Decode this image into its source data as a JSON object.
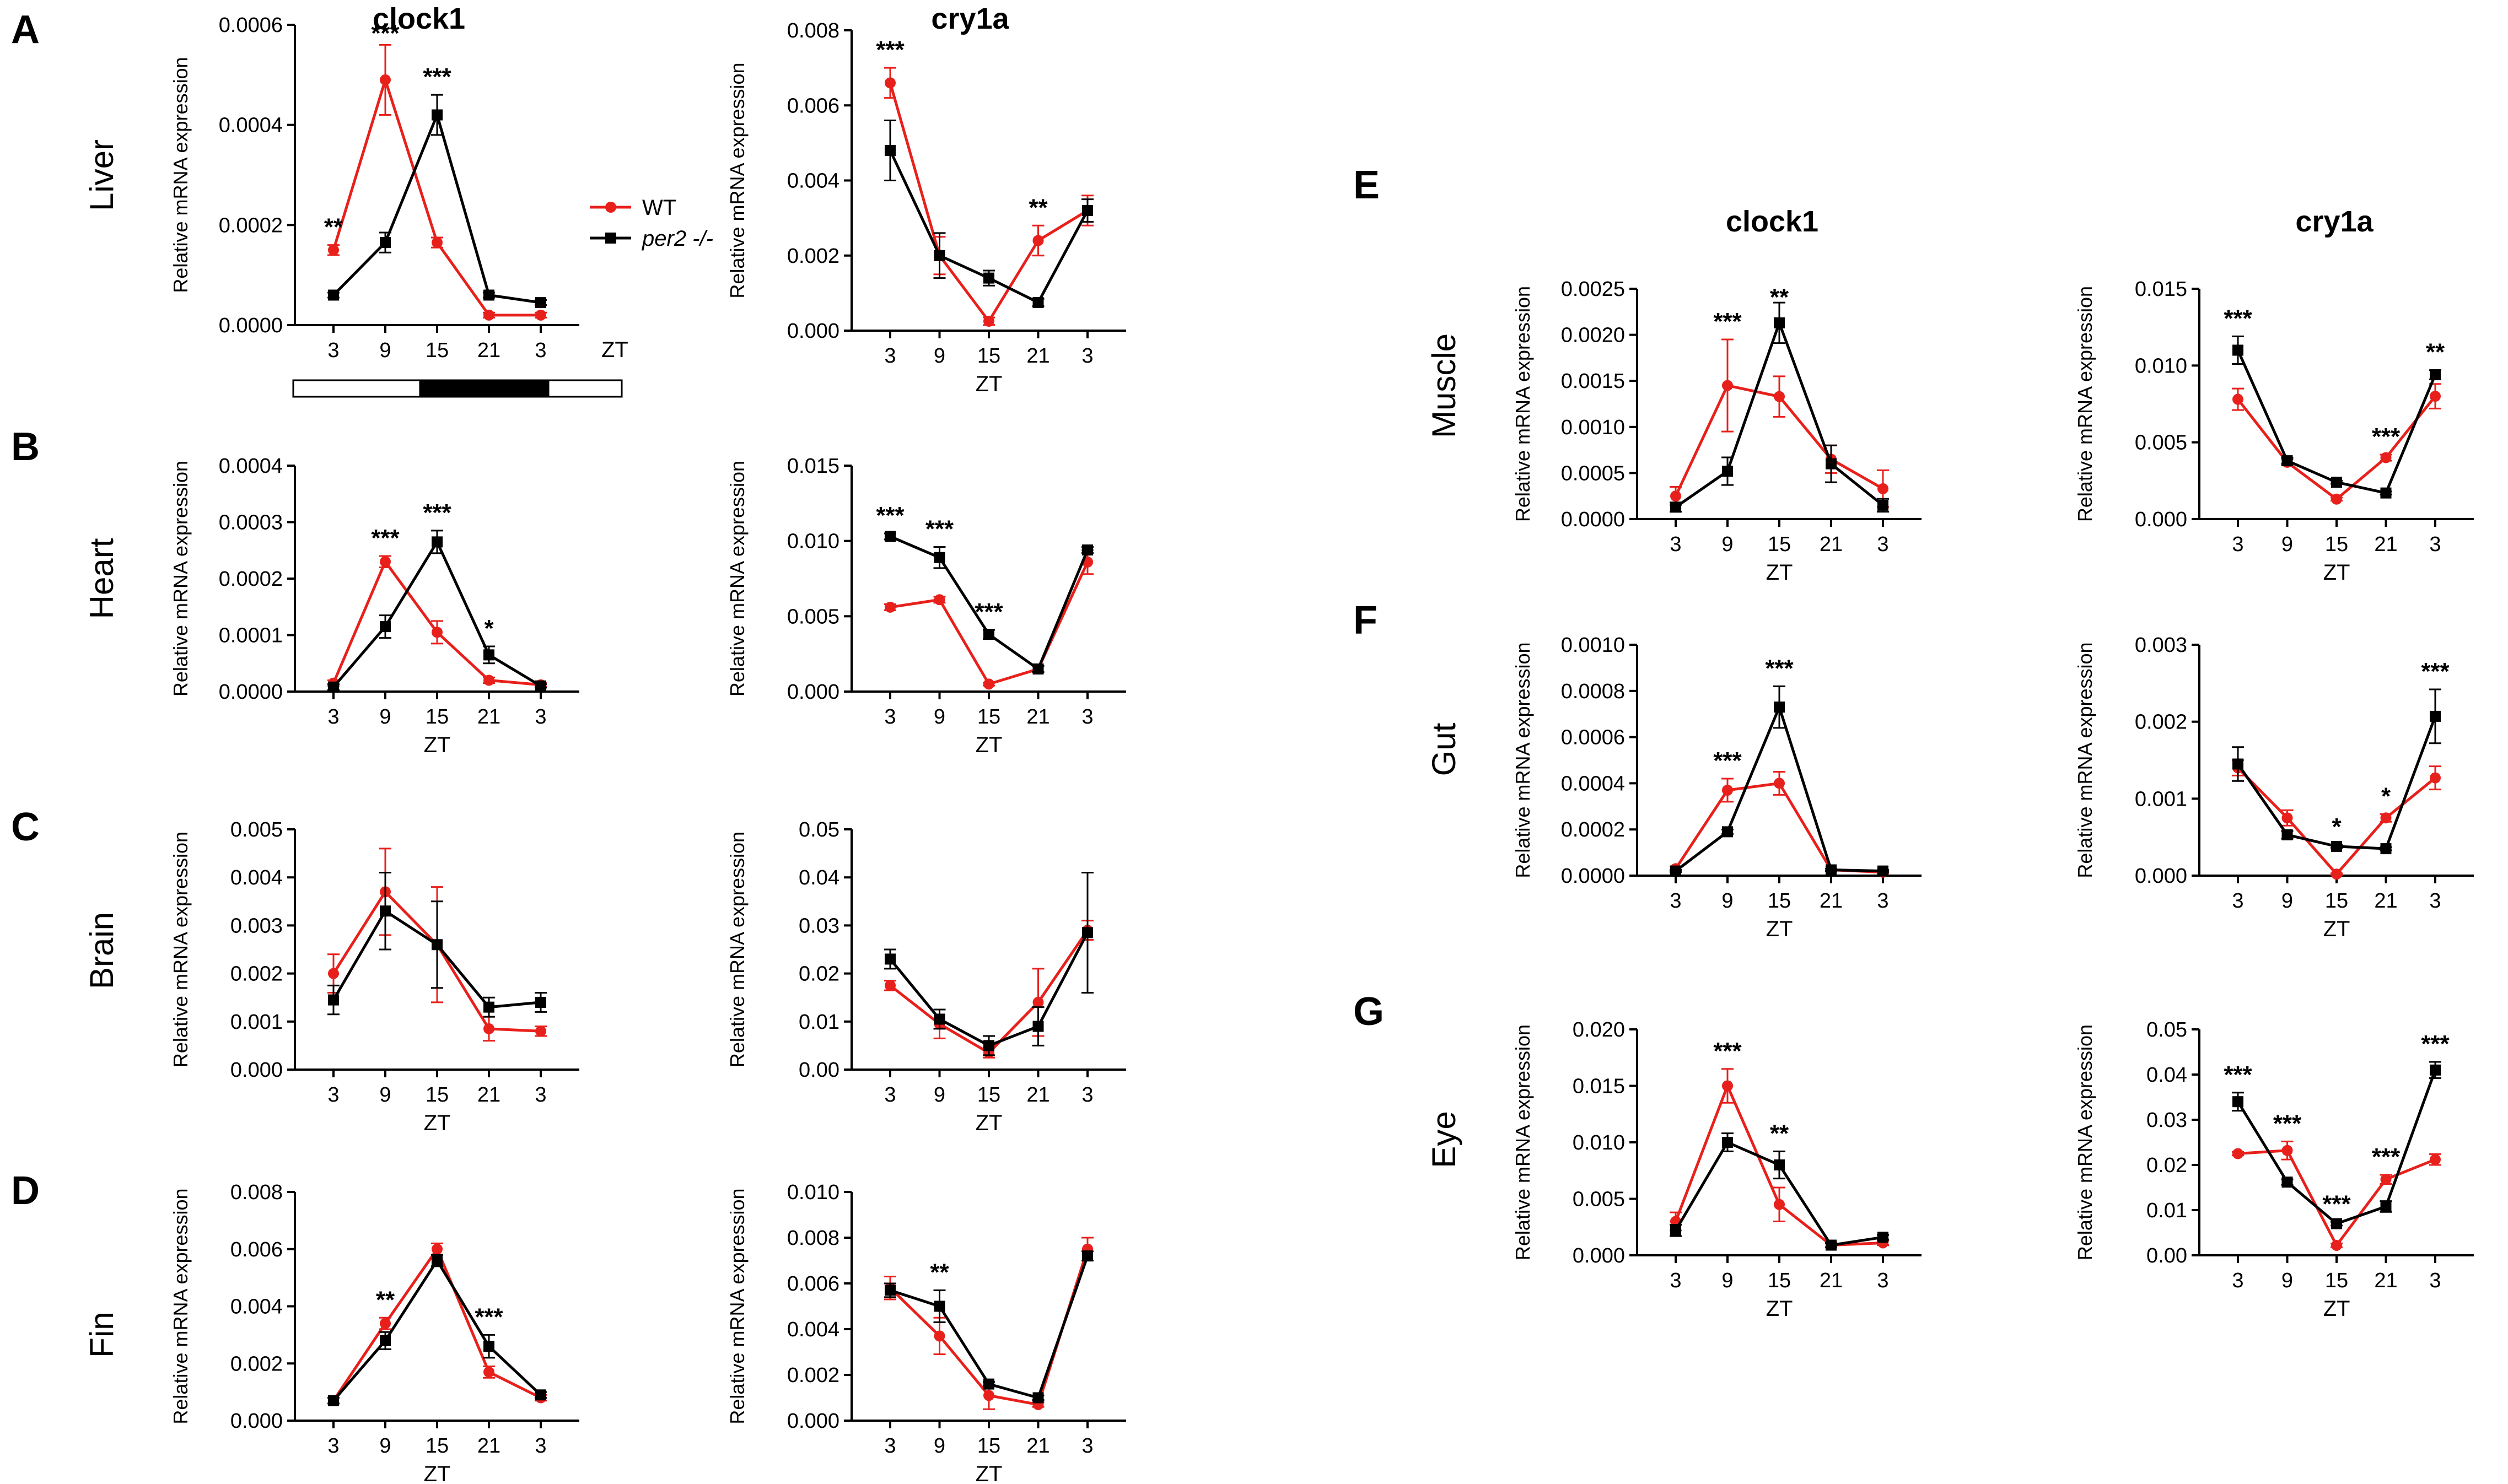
{
  "figure": {
    "gene_headers": [
      "clock1",
      "cry1a",
      "clock1",
      "cry1a"
    ],
    "ylabel": "Relative mRNA expression",
    "xlabel": "ZT",
    "legend": [
      {
        "label": "WT",
        "color": "#e8201c",
        "marker": "circle"
      },
      {
        "label": "per2 -/-",
        "color": "#000000",
        "marker": "square"
      }
    ]
  },
  "chart_data": [
    {
      "panel": "A",
      "tissue": "Liver",
      "gene": "clock1",
      "type": "line",
      "x": [
        "3",
        "9",
        "15",
        "21",
        "3"
      ],
      "xlabel": "ZT",
      "ylabel": "Relative mRNA expression",
      "ylim": [
        0,
        0.0006
      ],
      "yticks": [
        "0.0000",
        "0.0002",
        "0.0004",
        "0.0006"
      ],
      "series": [
        {
          "name": "WT",
          "color": "#e8201c",
          "values": [
            0.00015,
            0.00049,
            0.000165,
            2e-05,
            2e-05
          ],
          "errors": [
            1e-05,
            7e-05,
            1e-05,
            5e-06,
            5e-06
          ]
        },
        {
          "name": "per2 -/-",
          "color": "#000000",
          "values": [
            6e-05,
            0.000165,
            0.00042,
            6e-05,
            4.5e-05
          ],
          "errors": [
            5e-06,
            2e-05,
            4e-05,
            5e-06,
            5e-06
          ]
        }
      ],
      "annotations": [
        "**",
        "***",
        "***",
        "",
        ""
      ]
    },
    {
      "panel": "A",
      "tissue": "Liver",
      "gene": "cry1a",
      "type": "line",
      "x": [
        "3",
        "9",
        "15",
        "21",
        "3"
      ],
      "xlabel": "ZT",
      "ylabel": "Relative mRNA expression",
      "ylim": [
        0,
        0.008
      ],
      "yticks": [
        "0.000",
        "0.002",
        "0.004",
        "0.006",
        "0.008"
      ],
      "series": [
        {
          "name": "WT",
          "color": "#e8201c",
          "values": [
            0.0066,
            0.002,
            0.00025,
            0.0024,
            0.0032
          ],
          "errors": [
            0.0004,
            0.0005,
            0.0001,
            0.0004,
            0.0004
          ]
        },
        {
          "name": "per2 -/-",
          "color": "#000000",
          "values": [
            0.0048,
            0.002,
            0.0014,
            0.00075,
            0.0032
          ],
          "errors": [
            0.0008,
            0.0006,
            0.0002,
            0.0001,
            0.0003
          ]
        }
      ],
      "annotations": [
        "***",
        "",
        "",
        "**",
        ""
      ]
    },
    {
      "panel": "B",
      "tissue": "Heart",
      "gene": "clock1",
      "type": "line",
      "x": [
        "3",
        "9",
        "15",
        "21",
        "3"
      ],
      "xlabel": "ZT",
      "ylabel": "Relative mRNA expression",
      "ylim": [
        0,
        0.0004
      ],
      "yticks": [
        "0.0000",
        "0.0001",
        "0.0002",
        "0.0003",
        "0.0004"
      ],
      "series": [
        {
          "name": "WT",
          "color": "#e8201c",
          "values": [
            1.5e-05,
            0.00023,
            0.000105,
            2e-05,
            1.2e-05
          ],
          "errors": [
            5e-06,
            1e-05,
            2e-05,
            5e-06,
            3e-06
          ]
        },
        {
          "name": "per2 -/-",
          "color": "#000000",
          "values": [
            8e-06,
            0.000115,
            0.000265,
            6.5e-05,
            1e-05
          ],
          "errors": [
            5e-06,
            2e-05,
            2e-05,
            1.5e-05,
            3e-06
          ]
        }
      ],
      "annotations": [
        "",
        "***",
        "***",
        "*",
        ""
      ]
    },
    {
      "panel": "B",
      "tissue": "Heart",
      "gene": "cry1a",
      "type": "line",
      "x": [
        "3",
        "9",
        "15",
        "21",
        "3"
      ],
      "xlabel": "ZT",
      "ylabel": "Relative mRNA expression",
      "ylim": [
        0,
        0.015
      ],
      "yticks": [
        "0.000",
        "0.005",
        "0.010",
        "0.015"
      ],
      "series": [
        {
          "name": "WT",
          "color": "#e8201c",
          "values": [
            0.0056,
            0.0061,
            0.0005,
            0.0015,
            0.0086
          ],
          "errors": [
            0.0002,
            0.0002,
            0.0001,
            0.0002,
            0.0008
          ]
        },
        {
          "name": "per2 -/-",
          "color": "#000000",
          "values": [
            0.0103,
            0.0089,
            0.0038,
            0.0015,
            0.0094
          ],
          "errors": [
            0.0002,
            0.0007,
            0.0003,
            0.0002,
            0.0002
          ]
        }
      ],
      "annotations": [
        "***",
        "***",
        "***",
        "",
        ""
      ]
    },
    {
      "panel": "C",
      "tissue": "Brain",
      "gene": "clock1",
      "type": "line",
      "x": [
        "3",
        "9",
        "15",
        "21",
        "3"
      ],
      "xlabel": "ZT",
      "ylabel": "Relative mRNA expression",
      "ylim": [
        0,
        0.005
      ],
      "yticks": [
        "0.000",
        "0.001",
        "0.002",
        "0.003",
        "0.004",
        "0.005"
      ],
      "series": [
        {
          "name": "WT",
          "color": "#e8201c",
          "values": [
            0.002,
            0.0037,
            0.0026,
            0.00085,
            0.0008
          ],
          "errors": [
            0.0004,
            0.0009,
            0.0012,
            0.00025,
            0.0001
          ]
        },
        {
          "name": "per2 -/-",
          "color": "#000000",
          "values": [
            0.00145,
            0.0033,
            0.0026,
            0.0013,
            0.0014
          ],
          "errors": [
            0.0003,
            0.0008,
            0.0009,
            0.0002,
            0.0002
          ]
        }
      ],
      "annotations": [
        "",
        "",
        "",
        "",
        ""
      ]
    },
    {
      "panel": "C",
      "tissue": "Brain",
      "gene": "cry1a",
      "type": "line",
      "x": [
        "3",
        "9",
        "15",
        "21",
        "3"
      ],
      "xlabel": "ZT",
      "ylabel": "Relative mRNA expression",
      "ylim": [
        0,
        0.05
      ],
      "yticks": [
        "0.00",
        "0.01",
        "0.02",
        "0.03",
        "0.04",
        "0.05"
      ],
      "series": [
        {
          "name": "WT",
          "color": "#e8201c",
          "values": [
            0.0175,
            0.0095,
            0.0035,
            0.014,
            0.029
          ],
          "errors": [
            0.001,
            0.003,
            0.001,
            0.007,
            0.002
          ]
        },
        {
          "name": "per2 -/-",
          "color": "#000000",
          "values": [
            0.023,
            0.0105,
            0.005,
            0.009,
            0.0285
          ],
          "errors": [
            0.002,
            0.002,
            0.002,
            0.004,
            0.0125
          ]
        }
      ],
      "annotations": [
        "",
        "",
        "",
        "",
        ""
      ]
    },
    {
      "panel": "D",
      "tissue": "Fin",
      "gene": "clock1",
      "type": "line",
      "x": [
        "3",
        "9",
        "15",
        "21",
        "3"
      ],
      "xlabel": "ZT",
      "ylabel": "Relative mRNA expression",
      "ylim": [
        0,
        0.008
      ],
      "yticks": [
        "0.000",
        "0.002",
        "0.004",
        "0.006",
        "0.008"
      ],
      "series": [
        {
          "name": "WT",
          "color": "#e8201c",
          "values": [
            0.0007,
            0.0034,
            0.006,
            0.0017,
            0.0008
          ],
          "errors": [
            0.0001,
            0.0002,
            0.0002,
            0.0002,
            0.0001
          ]
        },
        {
          "name": "per2 -/-",
          "color": "#000000",
          "values": [
            0.0007,
            0.0028,
            0.0056,
            0.0026,
            0.0009
          ],
          "errors": [
            0.0001,
            0.0003,
            0.0002,
            0.0004,
            0.0001
          ]
        }
      ],
      "annotations": [
        "",
        "**",
        "",
        "***",
        ""
      ]
    },
    {
      "panel": "D",
      "tissue": "Fin",
      "gene": "cry1a",
      "type": "line",
      "x": [
        "3",
        "9",
        "15",
        "21",
        "3"
      ],
      "xlabel": "ZT",
      "ylabel": "Relative mRNA expression",
      "ylim": [
        0,
        0.01
      ],
      "yticks": [
        "0.000",
        "0.002",
        "0.004",
        "0.006",
        "0.008",
        "0.010"
      ],
      "series": [
        {
          "name": "WT",
          "color": "#e8201c",
          "values": [
            0.0058,
            0.0037,
            0.0011,
            0.0007,
            0.0075
          ],
          "errors": [
            0.0005,
            0.0008,
            0.0006,
            0.0001,
            0.0005
          ]
        },
        {
          "name": "per2 -/-",
          "color": "#000000",
          "values": [
            0.0057,
            0.005,
            0.0016,
            0.001,
            0.0072
          ],
          "errors": [
            0.0003,
            0.0007,
            0.0001,
            0.0001,
            0.0002
          ]
        }
      ],
      "annotations": [
        "",
        "**",
        "",
        "",
        ""
      ]
    },
    {
      "panel": "E",
      "tissue": "Muscle",
      "gene": "clock1",
      "type": "line",
      "x": [
        "3",
        "9",
        "15",
        "21",
        "3"
      ],
      "xlabel": "ZT",
      "ylabel": "Relative mRNA expression",
      "ylim": [
        0,
        0.0025
      ],
      "yticks": [
        "0.0000",
        "0.0005",
        "0.0010",
        "0.0015",
        "0.0020",
        "0.0025"
      ],
      "series": [
        {
          "name": "WT",
          "color": "#e8201c",
          "values": [
            0.00025,
            0.00145,
            0.00133,
            0.00065,
            0.00033
          ],
          "errors": [
            0.0001,
            0.0005,
            0.00022,
            0.00015,
            0.0002
          ]
        },
        {
          "name": "per2 -/-",
          "color": "#000000",
          "values": [
            0.00013,
            0.00052,
            0.00213,
            0.0006,
            0.00015
          ],
          "errors": [
            5e-05,
            0.00015,
            0.00022,
            0.0002,
            7e-05
          ]
        }
      ],
      "annotations": [
        "",
        "***",
        "**",
        "",
        ""
      ]
    },
    {
      "panel": "E",
      "tissue": "Muscle",
      "gene": "cry1a",
      "type": "line",
      "x": [
        "3",
        "9",
        "15",
        "21",
        "3"
      ],
      "xlabel": "ZT",
      "ylabel": "Relative mRNA expression",
      "ylim": [
        0,
        0.015
      ],
      "yticks": [
        "0.000",
        "0.005",
        "0.010",
        "0.015"
      ],
      "series": [
        {
          "name": "WT",
          "color": "#e8201c",
          "values": [
            0.0078,
            0.0037,
            0.0013,
            0.004,
            0.008
          ],
          "errors": [
            0.0007,
            0.0002,
            0.0001,
            0.0002,
            0.0008
          ]
        },
        {
          "name": "per2 -/-",
          "color": "#000000",
          "values": [
            0.011,
            0.0038,
            0.0024,
            0.0017,
            0.0094
          ],
          "errors": [
            0.0009,
            0.0002,
            0.0001,
            0.0001,
            0.0003
          ]
        }
      ],
      "annotations": [
        "***",
        "",
        "",
        "***",
        "**"
      ]
    },
    {
      "panel": "F",
      "tissue": "Gut",
      "gene": "clock1",
      "type": "line",
      "x": [
        "3",
        "9",
        "15",
        "21",
        "3"
      ],
      "xlabel": "ZT",
      "ylabel": "Relative mRNA expression",
      "ylim": [
        0,
        0.001
      ],
      "yticks": [
        "0.0000",
        "0.0002",
        "0.0004",
        "0.0006",
        "0.0008",
        "0.0010"
      ],
      "series": [
        {
          "name": "WT",
          "color": "#e8201c",
          "values": [
            3e-05,
            0.00037,
            0.0004,
            2.5e-05,
            1.5e-05
          ],
          "errors": [
            1e-05,
            5e-05,
            5e-05,
            5e-06,
            5e-06
          ]
        },
        {
          "name": "per2 -/-",
          "color": "#000000",
          "values": [
            2e-05,
            0.00019,
            0.00073,
            2.5e-05,
            2e-05
          ],
          "errors": [
            5e-06,
            1e-05,
            9e-05,
            5e-06,
            5e-06
          ]
        }
      ],
      "annotations": [
        "",
        "***",
        "***",
        "",
        ""
      ]
    },
    {
      "panel": "F",
      "tissue": "Gut",
      "gene": "cry1a",
      "type": "line",
      "x": [
        "3",
        "9",
        "15",
        "21",
        "3"
      ],
      "xlabel": "ZT",
      "ylabel": "Relative mRNA expression",
      "ylim": [
        0,
        0.003
      ],
      "yticks": [
        "0.000",
        "0.001",
        "0.002",
        "0.003"
      ],
      "series": [
        {
          "name": "WT",
          "color": "#e8201c",
          "values": [
            0.0014,
            0.00075,
            2e-05,
            0.00075,
            0.00127
          ],
          "errors": [
            0.0001,
            0.0001,
            1e-05,
            5e-05,
            0.00015
          ]
        },
        {
          "name": "per2 -/-",
          "color": "#000000",
          "values": [
            0.00145,
            0.00053,
            0.00038,
            0.00035,
            0.00207
          ],
          "errors": [
            0.00022,
            5e-05,
            2e-05,
            2e-05,
            0.00035
          ]
        }
      ],
      "annotations": [
        "",
        "",
        "*",
        "*",
        "***"
      ]
    },
    {
      "panel": "G",
      "tissue": "Eye",
      "gene": "clock1",
      "type": "line",
      "x": [
        "3",
        "9",
        "15",
        "21",
        "3"
      ],
      "xlabel": "ZT",
      "ylabel": "Relative mRNA expression",
      "ylim": [
        0,
        0.02
      ],
      "yticks": [
        "0.000",
        "0.005",
        "0.010",
        "0.015",
        "0.020"
      ],
      "series": [
        {
          "name": "WT",
          "color": "#e8201c",
          "values": [
            0.003,
            0.015,
            0.0045,
            0.0009,
            0.0011
          ],
          "errors": [
            0.0008,
            0.0015,
            0.0015,
            0.0002,
            0.0002
          ]
        },
        {
          "name": "per2 -/-",
          "color": "#000000",
          "values": [
            0.0022,
            0.01,
            0.008,
            0.0009,
            0.0016
          ],
          "errors": [
            0.0005,
            0.0008,
            0.0012,
            0.0002,
            0.0002
          ]
        }
      ],
      "annotations": [
        "",
        "***",
        "**",
        "",
        ""
      ]
    },
    {
      "panel": "G",
      "tissue": "Eye",
      "gene": "cry1a",
      "type": "line",
      "x": [
        "3",
        "9",
        "15",
        "21",
        "3"
      ],
      "xlabel": "ZT",
      "ylabel": "Relative mRNA expression",
      "ylim": [
        0,
        0.05
      ],
      "yticks": [
        "0.00",
        "0.01",
        "0.02",
        "0.03",
        "0.04",
        "0.05"
      ],
      "series": [
        {
          "name": "WT",
          "color": "#e8201c",
          "values": [
            0.0225,
            0.0232,
            0.0022,
            0.0168,
            0.0212
          ],
          "errors": [
            0.0004,
            0.002,
            0.0004,
            0.001,
            0.0012
          ]
        },
        {
          "name": "per2 -/-",
          "color": "#000000",
          "values": [
            0.034,
            0.0162,
            0.007,
            0.0108,
            0.041
          ],
          "errors": [
            0.002,
            0.0006,
            0.0004,
            0.0012,
            0.0018
          ]
        }
      ],
      "annotations": [
        "***",
        "***",
        "***",
        "***",
        "***"
      ]
    }
  ]
}
